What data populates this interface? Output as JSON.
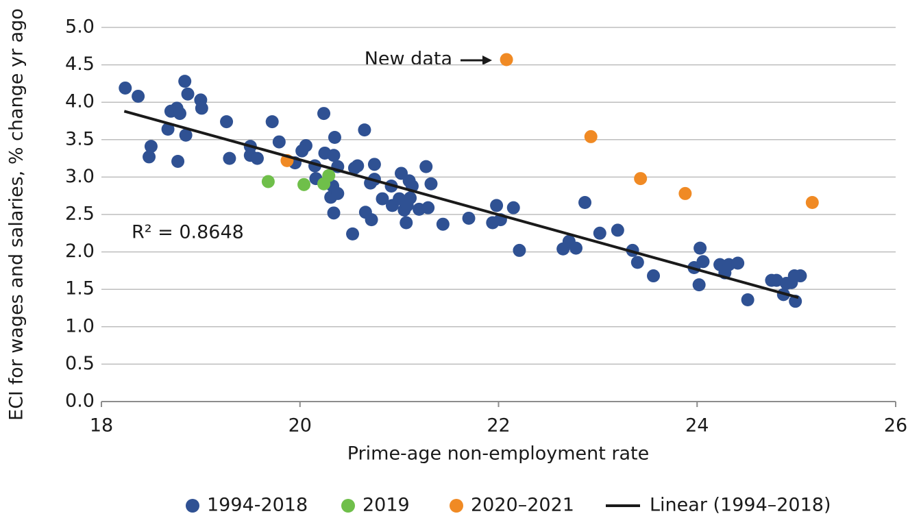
{
  "chart_data": {
    "type": "scatter",
    "xlabel": "Prime-age non-employment rate",
    "ylabel": "ECI for wages and salaries, % change yr ago",
    "xlim": [
      18,
      26
    ],
    "xticks": [
      18,
      20,
      22,
      24,
      26
    ],
    "ylim": [
      0,
      5
    ],
    "yticks": [
      {
        "value": 0,
        "label": "0.0"
      },
      0.5,
      {
        "value": 1,
        "label": "1.0"
      },
      1.5,
      {
        "value": 2,
        "label": "2.0"
      },
      2.5,
      {
        "value": 3,
        "label": "3.0"
      },
      3.5,
      {
        "value": 4,
        "label": "4.0"
      },
      4.5,
      {
        "value": 5,
        "label": "5.0"
      }
    ],
    "grid": true,
    "legend": "bottom",
    "series": [
      {
        "name": "1994-2018",
        "color": "#2f5193",
        "x": [
          18.24,
          18.37,
          18.84,
          18.87,
          19.0,
          19.01,
          18.76,
          18.7,
          18.79,
          18.67,
          18.85,
          18.5,
          18.48,
          18.77,
          19.26,
          19.29,
          19.5,
          19.5,
          19.57,
          19.72,
          19.79,
          20.06,
          20.02,
          19.95,
          20.15,
          20.24,
          20.25,
          20.34,
          20.35,
          20.16,
          20.38,
          20.33,
          20.31,
          20.38,
          20.34,
          20.53,
          20.55,
          20.58,
          20.65,
          20.75,
          20.75,
          20.71,
          20.66,
          20.72,
          20.83,
          20.92,
          20.93,
          21.02,
          21.0,
          21.05,
          21.07,
          21.1,
          21.13,
          21.11,
          21.08,
          21.2,
          21.27,
          21.32,
          21.29,
          21.44,
          21.7,
          21.98,
          21.94,
          22.02,
          22.15,
          22.21,
          22.65,
          22.71,
          22.78,
          22.87,
          23.02,
          23.2,
          23.35,
          23.4,
          23.56,
          24.03,
          23.97,
          24.06,
          24.02,
          24.23,
          24.28,
          24.32,
          24.41,
          24.51,
          24.75,
          24.8,
          24.87,
          24.9,
          24.95,
          24.98,
          25.04,
          24.99
        ],
        "values": [
          4.19,
          4.08,
          4.28,
          4.11,
          4.03,
          3.92,
          3.92,
          3.88,
          3.85,
          3.64,
          3.56,
          3.41,
          3.27,
          3.21,
          3.74,
          3.25,
          3.41,
          3.29,
          3.25,
          3.74,
          3.47,
          3.42,
          3.35,
          3.19,
          3.15,
          3.85,
          3.32,
          3.29,
          3.53,
          2.98,
          3.14,
          2.88,
          2.73,
          2.78,
          2.52,
          2.24,
          3.12,
          3.15,
          3.63,
          3.17,
          2.97,
          2.92,
          2.53,
          2.43,
          2.71,
          2.88,
          2.62,
          3.05,
          2.71,
          2.56,
          2.39,
          2.95,
          2.88,
          2.72,
          2.62,
          2.57,
          3.14,
          2.91,
          2.59,
          2.37,
          2.45,
          2.62,
          2.39,
          2.43,
          2.59,
          2.02,
          2.04,
          2.14,
          2.05,
          2.66,
          2.25,
          2.29,
          2.02,
          1.86,
          1.68,
          2.05,
          1.79,
          1.87,
          1.56,
          1.83,
          1.72,
          1.83,
          1.85,
          1.36,
          1.62,
          1.62,
          1.43,
          1.58,
          1.59,
          1.68,
          1.68,
          1.34
        ]
      },
      {
        "name": "2019",
        "color": "#6fbf4a",
        "x": [
          19.68,
          20.04,
          20.24,
          20.29
        ],
        "values": [
          2.94,
          2.9,
          2.91,
          3.02
        ]
      },
      {
        "name": "2020–2021",
        "color": "#f08a24",
        "x": [
          19.87,
          22.08,
          22.93,
          23.43,
          23.88,
          25.16
        ],
        "values": [
          3.22,
          4.57,
          3.54,
          2.98,
          2.78,
          2.66
        ]
      }
    ],
    "trendline": {
      "name": "Linear (1994–2018)",
      "color": "#1a1a1a",
      "x": [
        18.23,
        25.02
      ],
      "values": [
        3.88,
        1.39
      ]
    },
    "annotations": [
      "New data",
      "R² = 0.8648"
    ]
  }
}
